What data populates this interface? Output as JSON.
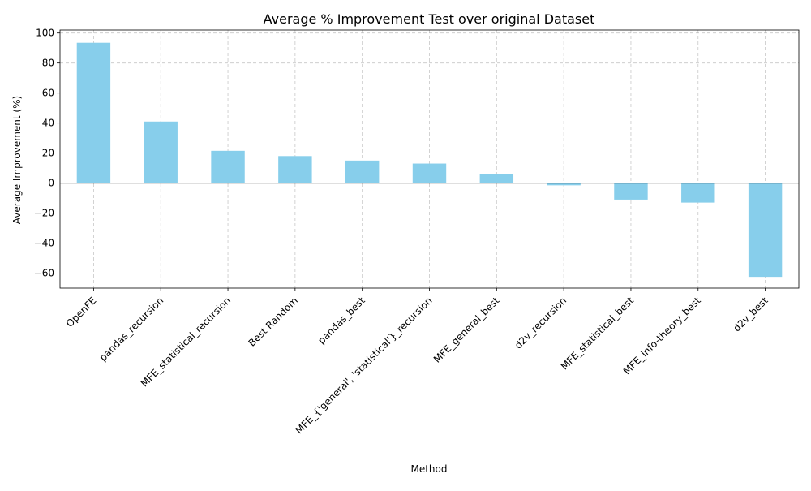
{
  "chart_data": {
    "type": "bar",
    "title": "Average % Improvement Test over original Dataset",
    "xlabel": "Method",
    "ylabel": "Average Improvement (%)",
    "categories": [
      "OpenFE",
      "pandas_recursion",
      "MFE_statistical_recursion",
      "Best Random",
      "pandas_best",
      "MFE_{'general', 'statistical'}_recursion",
      "MFE_general_best",
      "d2v_recursion",
      "MFE_statistical_best",
      "MFE_info-theory_best",
      "d2v_best"
    ],
    "values": [
      93.5,
      41.0,
      21.5,
      18.0,
      15.0,
      13.0,
      6.0,
      -1.5,
      -11.0,
      -13.0,
      -62.5
    ],
    "ylim": [
      -70,
      102
    ],
    "yticks": [
      -60,
      -40,
      -20,
      0,
      20,
      40,
      60,
      80,
      100
    ],
    "bar_color": "#87ceeb",
    "grid": true,
    "zero_line": true
  }
}
